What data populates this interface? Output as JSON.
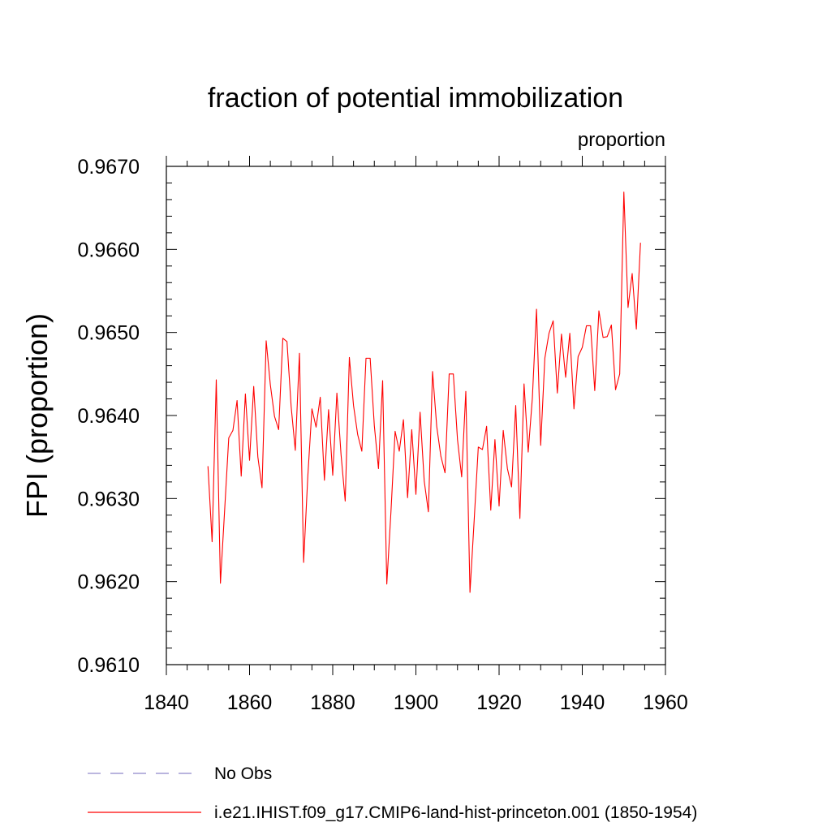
{
  "chart_data": {
    "type": "line",
    "title": "fraction of potential immobilization",
    "units_label": "proportion",
    "xlabel": "",
    "ylabel": "FPI  (proportion)",
    "xlim": [
      1840,
      1960
    ],
    "ylim": [
      0.961,
      0.967
    ],
    "x_ticks": [
      1840,
      1860,
      1880,
      1900,
      1920,
      1940,
      1960
    ],
    "x_tick_labels": [
      "1840",
      "1860",
      "1880",
      "1900",
      "1920",
      "1940",
      "1960"
    ],
    "x_minor_step": 5,
    "y_ticks": [
      0.961,
      0.962,
      0.963,
      0.964,
      0.965,
      0.966,
      0.967
    ],
    "y_tick_labels": [
      "0.9610",
      "0.9620",
      "0.9630",
      "0.9640",
      "0.9650",
      "0.9660",
      "0.9670"
    ],
    "y_minor_step": 0.0002,
    "grid": false,
    "legend_position": "bottom",
    "series": [
      {
        "name": "No Obs",
        "color": "#8f87c9",
        "dash": "dashed",
        "x": [],
        "values": []
      },
      {
        "name": "i.e21.IHIST.f09_g17.CMIP6-land-hist-princeton.001 (1850-1954)",
        "color": "#ff0000",
        "dash": "solid",
        "x": [
          1850,
          1851,
          1852,
          1853,
          1854,
          1855,
          1856,
          1857,
          1858,
          1859,
          1860,
          1861,
          1862,
          1863,
          1864,
          1865,
          1866,
          1867,
          1868,
          1869,
          1870,
          1871,
          1872,
          1873,
          1874,
          1875,
          1876,
          1877,
          1878,
          1879,
          1880,
          1881,
          1882,
          1883,
          1884,
          1885,
          1886,
          1887,
          1888,
          1889,
          1890,
          1891,
          1892,
          1893,
          1894,
          1895,
          1896,
          1897,
          1898,
          1899,
          1900,
          1901,
          1902,
          1903,
          1904,
          1905,
          1906,
          1907,
          1908,
          1909,
          1910,
          1911,
          1912,
          1913,
          1914,
          1915,
          1916,
          1917,
          1918,
          1919,
          1920,
          1921,
          1922,
          1923,
          1924,
          1925,
          1926,
          1927,
          1928,
          1929,
          1930,
          1931,
          1932,
          1933,
          1934,
          1935,
          1936,
          1937,
          1938,
          1939,
          1940,
          1941,
          1942,
          1943,
          1944,
          1945,
          1946,
          1947,
          1948,
          1949,
          1950,
          1951,
          1952,
          1953,
          1954
        ],
        "values": [
          0.96339,
          0.96248,
          0.96443,
          0.96198,
          0.96285,
          0.96373,
          0.96382,
          0.96418,
          0.96327,
          0.96426,
          0.96346,
          0.96435,
          0.9635,
          0.96313,
          0.9649,
          0.96437,
          0.96399,
          0.96383,
          0.96493,
          0.96489,
          0.96411,
          0.96358,
          0.96475,
          0.96223,
          0.96326,
          0.96408,
          0.96386,
          0.96422,
          0.96322,
          0.96407,
          0.96328,
          0.96427,
          0.96353,
          0.96297,
          0.9647,
          0.96412,
          0.96377,
          0.96357,
          0.96469,
          0.96469,
          0.96388,
          0.96336,
          0.96442,
          0.96197,
          0.96284,
          0.96381,
          0.96357,
          0.96395,
          0.96301,
          0.96383,
          0.96305,
          0.96404,
          0.96321,
          0.96284,
          0.96453,
          0.96387,
          0.96351,
          0.96331,
          0.9645,
          0.9645,
          0.96371,
          0.96326,
          0.96429,
          0.96187,
          0.96273,
          0.96362,
          0.96359,
          0.96387,
          0.96286,
          0.96371,
          0.96291,
          0.96382,
          0.96336,
          0.96314,
          0.96412,
          0.96276,
          0.96438,
          0.96356,
          0.96421,
          0.96528,
          0.96364,
          0.96469,
          0.96499,
          0.96514,
          0.96427,
          0.96498,
          0.96446,
          0.96499,
          0.96408,
          0.96471,
          0.96482,
          0.96508,
          0.96508,
          0.9643,
          0.96526,
          0.96494,
          0.96495,
          0.96509,
          0.96431,
          0.9645,
          0.96669,
          0.9653,
          0.96571,
          0.96504,
          0.96608
        ]
      }
    ]
  }
}
